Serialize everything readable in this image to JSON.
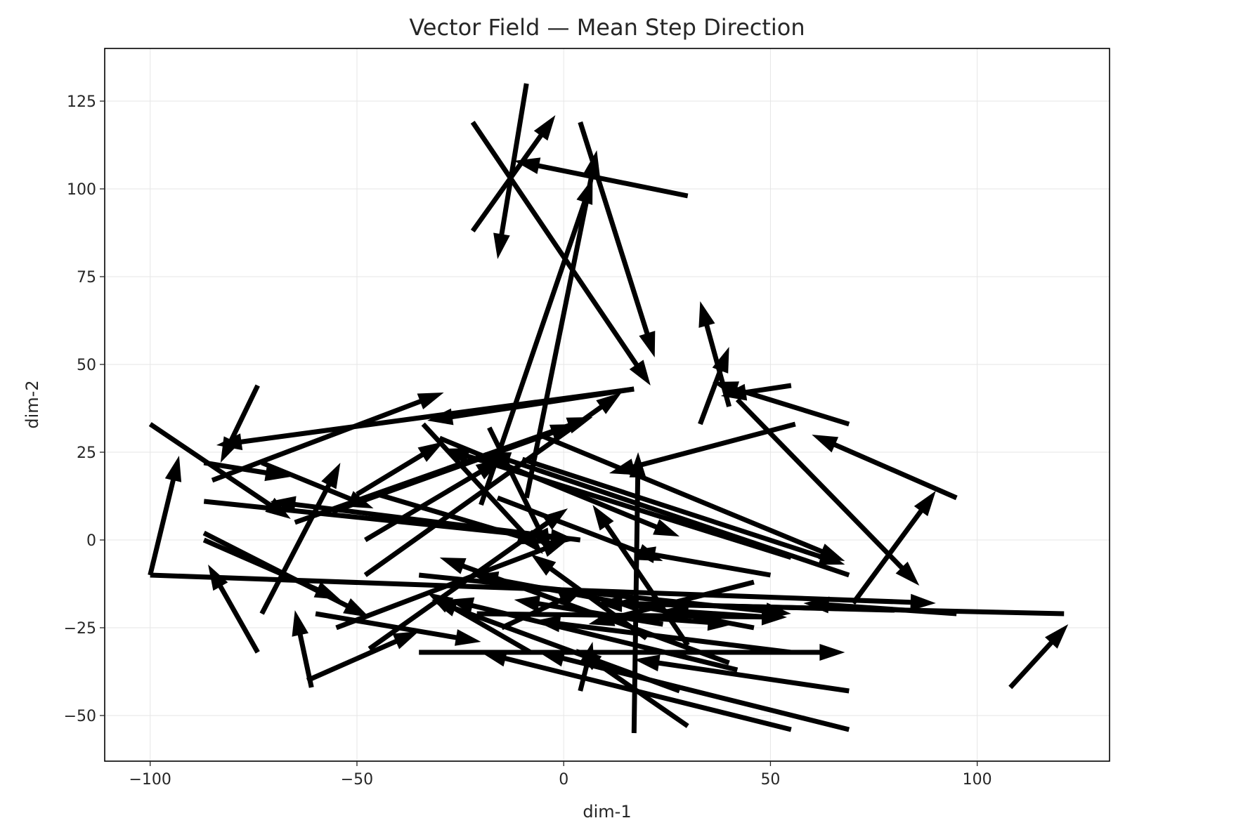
{
  "chart_data": {
    "type": "quiver",
    "title": "Vector Field — Mean Step Direction",
    "xlabel": "dim-1",
    "ylabel": "dim-2",
    "xlim": [
      -111,
      132
    ],
    "ylim": [
      -63,
      140
    ],
    "xticks": [
      -100,
      -50,
      0,
      50,
      100
    ],
    "yticks": [
      -50,
      -25,
      0,
      25,
      50,
      75,
      100,
      125
    ],
    "grid": true,
    "color": "#000000",
    "vectors": [
      {
        "x": -9,
        "y": 130,
        "u": -7,
        "v": -50
      },
      {
        "x": -22,
        "y": 88,
        "u": 20,
        "v": 33
      },
      {
        "x": -22,
        "y": 119,
        "u": 43,
        "v": -75
      },
      {
        "x": 30,
        "y": 98,
        "u": -42,
        "v": 10
      },
      {
        "x": 4,
        "y": 119,
        "u": 18,
        "v": -67
      },
      {
        "x": -9,
        "y": 12,
        "u": 17,
        "v": 99
      },
      {
        "x": -20,
        "y": 10,
        "u": 27,
        "v": 93
      },
      {
        "x": 33,
        "y": 33,
        "u": 7,
        "v": 22
      },
      {
        "x": 40,
        "y": 38,
        "u": -7,
        "v": 30
      },
      {
        "x": 55,
        "y": 44,
        "u": -17,
        "v": -3
      },
      {
        "x": 69,
        "y": 33,
        "u": -33,
        "v": 12
      },
      {
        "x": 95,
        "y": 12,
        "u": -35,
        "v": 18
      },
      {
        "x": 42,
        "y": 40,
        "u": 44,
        "v": -53
      },
      {
        "x": 70,
        "y": -18,
        "u": 20,
        "v": 32
      },
      {
        "x": 121,
        "y": -21,
        "u": -113,
        "v": 3
      },
      {
        "x": 108,
        "y": -42,
        "u": 14,
        "v": 18
      },
      {
        "x": 56,
        "y": 33,
        "u": -45,
        "v": -14
      },
      {
        "x": -100,
        "y": 33,
        "u": 34,
        "v": -27
      },
      {
        "x": -74,
        "y": 44,
        "u": -9,
        "v": -22
      },
      {
        "x": -100,
        "y": -10,
        "u": 7,
        "v": 34
      },
      {
        "x": -87,
        "y": 22,
        "u": 21,
        "v": -4
      },
      {
        "x": -87,
        "y": 11,
        "u": 90,
        "v": -11
      },
      {
        "x": -73,
        "y": 22,
        "u": 27,
        "v": -13
      },
      {
        "x": -85,
        "y": 17,
        "u": 56,
        "v": 25
      },
      {
        "x": -50,
        "y": 13,
        "u": 21,
        "v": 15
      },
      {
        "x": -48,
        "y": 0,
        "u": 33,
        "v": 23
      },
      {
        "x": -48,
        "y": -10,
        "u": 62,
        "v": 52
      },
      {
        "x": -73,
        "y": -21,
        "u": 19,
        "v": 43
      },
      {
        "x": -74,
        "y": -32,
        "u": -12,
        "v": 25
      },
      {
        "x": -61,
        "y": -42,
        "u": -4,
        "v": 22
      },
      {
        "x": -87,
        "y": 0,
        "u": 33,
        "v": -17
      },
      {
        "x": -87,
        "y": 2,
        "u": 40,
        "v": -24
      },
      {
        "x": -62,
        "y": -40,
        "u": 27,
        "v": 14
      },
      {
        "x": -47,
        "y": -31,
        "u": 48,
        "v": 40
      },
      {
        "x": -60,
        "y": -21,
        "u": 40,
        "v": -8
      },
      {
        "x": -35,
        "y": -32,
        "u": 103,
        "v": 0
      },
      {
        "x": -21,
        "y": -21,
        "u": 75,
        "v": -1
      },
      {
        "x": -35,
        "y": -10,
        "u": 90,
        "v": -11
      },
      {
        "x": -100,
        "y": -10,
        "u": 190,
        "v": -8
      },
      {
        "x": -30,
        "y": 29,
        "u": 58,
        "v": -28
      },
      {
        "x": -16,
        "y": 12,
        "u": 40,
        "v": -18
      },
      {
        "x": -34,
        "y": 33,
        "u": 29,
        "v": -37
      },
      {
        "x": -18,
        "y": 32,
        "u": 15,
        "v": -36
      },
      {
        "x": -10,
        "y": 23,
        "u": 78,
        "v": -30
      },
      {
        "x": -6,
        "y": 30,
        "u": 74,
        "v": -36
      },
      {
        "x": 17,
        "y": 43,
        "u": -50,
        "v": -9
      },
      {
        "x": -56,
        "y": 8,
        "u": 59,
        "v": 25
      },
      {
        "x": -65,
        "y": 5,
        "u": 72,
        "v": 30
      },
      {
        "x": 17,
        "y": 43,
        "u": -101,
        "v": -16
      },
      {
        "x": 4,
        "y": 0,
        "u": -75,
        "v": 11
      },
      {
        "x": -45,
        "y": 13,
        "u": 40,
        "v": -14
      },
      {
        "x": -55,
        "y": -25,
        "u": 56,
        "v": 25
      },
      {
        "x": 17,
        "y": -55,
        "u": 1,
        "v": 80
      },
      {
        "x": 30,
        "y": -30,
        "u": -23,
        "v": 40
      },
      {
        "x": 20,
        "y": -28,
        "u": -28,
        "v": 24
      },
      {
        "x": 46,
        "y": -12,
        "u": -40,
        "v": -12
      },
      {
        "x": 46,
        "y": -25,
        "u": -68,
        "v": 15
      },
      {
        "x": 55,
        "y": -32,
        "u": -62,
        "v": 9
      },
      {
        "x": 69,
        "y": -43,
        "u": -52,
        "v": 9
      },
      {
        "x": 69,
        "y": -54,
        "u": -75,
        "v": 22
      },
      {
        "x": 55,
        "y": -54,
        "u": -75,
        "v": 22
      },
      {
        "x": 30,
        "y": -53,
        "u": -27,
        "v": 22
      },
      {
        "x": 4,
        "y": -43,
        "u": 3,
        "v": 14
      },
      {
        "x": -8,
        "y": -32,
        "u": -25,
        "v": 17
      },
      {
        "x": -15,
        "y": -25,
        "u": 20,
        "v": 11
      },
      {
        "x": 24,
        "y": -24,
        "u": -36,
        "v": 7
      },
      {
        "x": 50,
        "y": -10,
        "u": -34,
        "v": 7
      },
      {
        "x": 40,
        "y": -35,
        "u": -70,
        "v": 30
      },
      {
        "x": 28,
        "y": -43,
        "u": -60,
        "v": 26
      },
      {
        "x": 80,
        "y": -20,
        "u": -68,
        "v": 2
      },
      {
        "x": 42,
        "y": -37,
        "u": -70,
        "v": 20
      },
      {
        "x": 18,
        "y": -22,
        "u": 23,
        "v": -2
      },
      {
        "x": 50,
        "y": -22,
        "u": -26,
        "v": 2
      },
      {
        "x": 95,
        "y": -21,
        "u": -37,
        "v": 3
      },
      {
        "x": 69,
        "y": -10,
        "u": -88,
        "v": 35
      },
      {
        "x": 55,
        "y": -5,
        "u": -84,
        "v": 31
      }
    ]
  }
}
